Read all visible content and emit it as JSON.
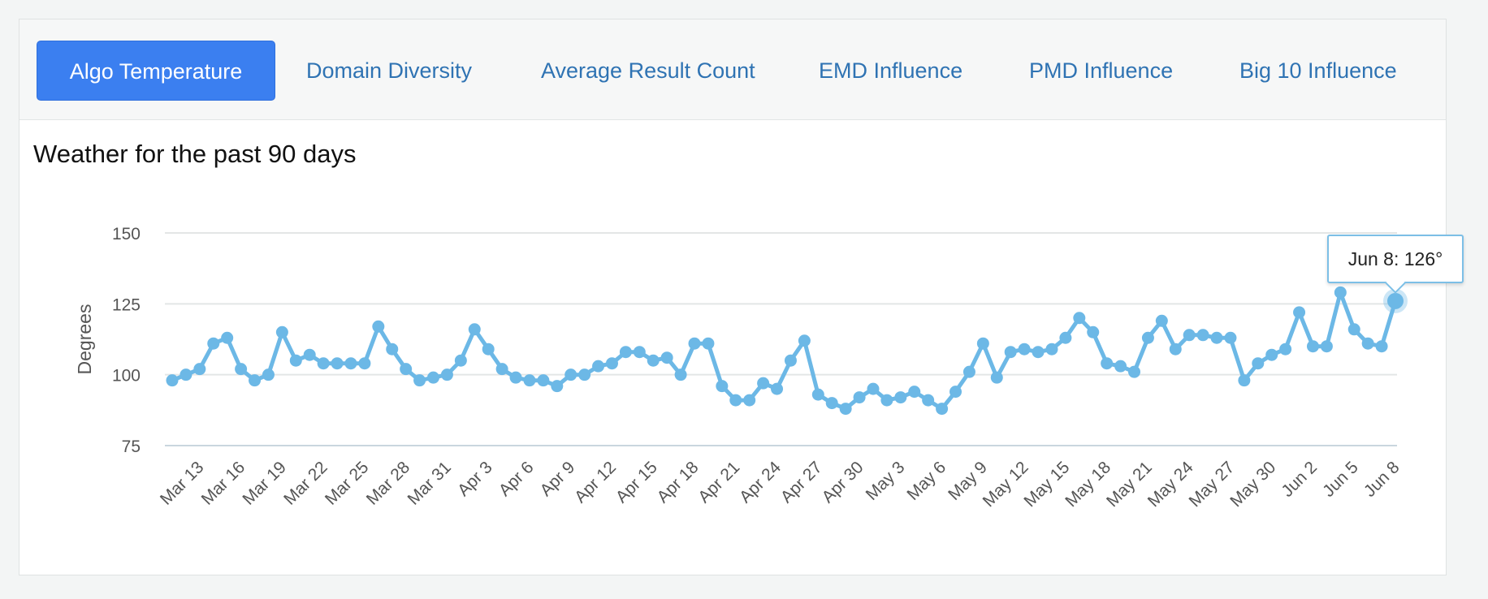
{
  "tabs": [
    {
      "label": "Algo Temperature",
      "active": true
    },
    {
      "label": "Domain Diversity",
      "active": false
    },
    {
      "label": "Average Result Count",
      "active": false
    },
    {
      "label": "EMD Influence",
      "active": false
    },
    {
      "label": "PMD Influence",
      "active": false
    },
    {
      "label": "Big 10 Influence",
      "active": false
    }
  ],
  "colors": {
    "accent": "#3b7ff0",
    "series": "#6cb8e6",
    "tab_text": "#2f73b3"
  },
  "tooltip": {
    "text": "Jun 8: 126°",
    "date": "Jun 8"
  },
  "chart_data": {
    "type": "line",
    "title": "Weather for the past 90 days",
    "xlabel": "",
    "ylabel": "Degrees",
    "ylim": [
      75,
      150
    ],
    "yticks": [
      75,
      100,
      125,
      150
    ],
    "grid": true,
    "x_tick_labels": [
      "Mar 13",
      "Mar 16",
      "Mar 19",
      "Mar 22",
      "Mar 25",
      "Mar 28",
      "Mar 31",
      "Apr 3",
      "Apr 6",
      "Apr 9",
      "Apr 12",
      "Apr 15",
      "Apr 18",
      "Apr 21",
      "Apr 24",
      "Apr 27",
      "Apr 30",
      "May 3",
      "May 6",
      "May 9",
      "May 12",
      "May 15",
      "May 18",
      "May 21",
      "May 24",
      "May 27",
      "May 30",
      "Jun 2",
      "Jun 5",
      "Jun 8"
    ],
    "x": [
      "Mar 11",
      "Mar 12",
      "Mar 13",
      "Mar 14",
      "Mar 15",
      "Mar 16",
      "Mar 17",
      "Mar 18",
      "Mar 19",
      "Mar 20",
      "Mar 21",
      "Mar 22",
      "Mar 23",
      "Mar 24",
      "Mar 25",
      "Mar 26",
      "Mar 27",
      "Mar 28",
      "Mar 29",
      "Mar 30",
      "Mar 31",
      "Apr 1",
      "Apr 2",
      "Apr 3",
      "Apr 4",
      "Apr 5",
      "Apr 6",
      "Apr 7",
      "Apr 8",
      "Apr 9",
      "Apr 10",
      "Apr 11",
      "Apr 12",
      "Apr 13",
      "Apr 14",
      "Apr 15",
      "Apr 16",
      "Apr 17",
      "Apr 18",
      "Apr 19",
      "Apr 20",
      "Apr 21",
      "Apr 22",
      "Apr 23",
      "Apr 24",
      "Apr 25",
      "Apr 26",
      "Apr 27",
      "Apr 28",
      "Apr 29",
      "Apr 30",
      "May 1",
      "May 2",
      "May 3",
      "May 4",
      "May 5",
      "May 6",
      "May 7",
      "May 8",
      "May 9",
      "May 10",
      "May 11",
      "May 12",
      "May 13",
      "May 14",
      "May 15",
      "May 16",
      "May 17",
      "May 18",
      "May 19",
      "May 20",
      "May 21",
      "May 22",
      "May 23",
      "May 24",
      "May 25",
      "May 26",
      "May 27",
      "May 28",
      "May 29",
      "May 30",
      "May 31",
      "Jun 1",
      "Jun 2",
      "Jun 3",
      "Jun 4",
      "Jun 5",
      "Jun 6",
      "Jun 7",
      "Jun 8"
    ],
    "series": [
      {
        "values": [
          98,
          100,
          102,
          111,
          113,
          102,
          98,
          100,
          115,
          105,
          107,
          104,
          104,
          104,
          104,
          117,
          109,
          102,
          98,
          99,
          100,
          105,
          116,
          109,
          102,
          99,
          98,
          98,
          96,
          100,
          100,
          103,
          104,
          108,
          108,
          105,
          106,
          100,
          111,
          111,
          96,
          91,
          91,
          97,
          95,
          105,
          112,
          93,
          90,
          88,
          92,
          95,
          91,
          92,
          94,
          91,
          88,
          94,
          101,
          111,
          99,
          108,
          109,
          108,
          109,
          113,
          120,
          115,
          104,
          103,
          101,
          113,
          119,
          109,
          114,
          114,
          113,
          113,
          98,
          104,
          107,
          109,
          122,
          110,
          110,
          129,
          116,
          111,
          110,
          126
        ]
      }
    ]
  }
}
